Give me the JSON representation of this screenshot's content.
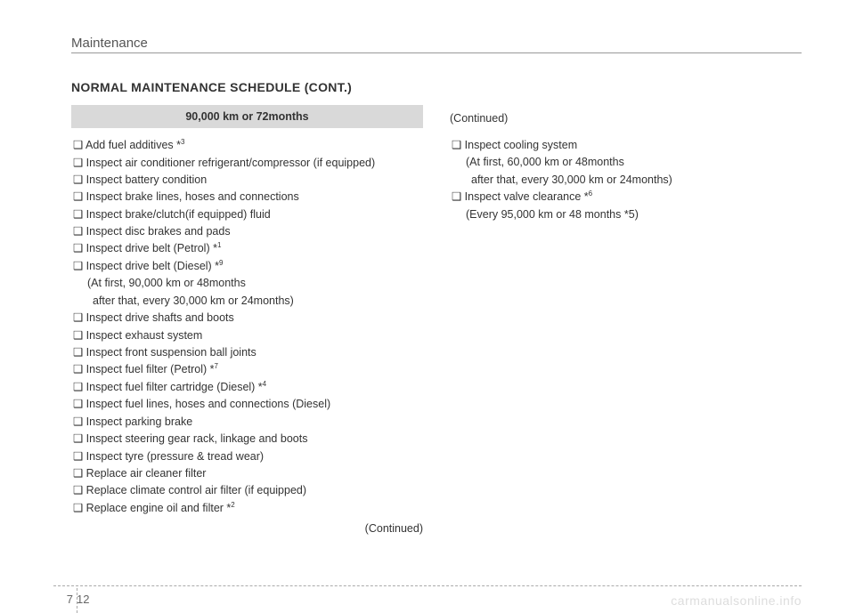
{
  "section": "Maintenance",
  "schedule_title": "NORMAL MAINTENANCE SCHEDULE (CONT.)",
  "interval_header": "90,000 km or 72months",
  "left_items": [
    {
      "text": "❑ Add fuel additives *",
      "sup": "3"
    },
    {
      "text": "❑ Inspect air conditioner refrigerant/compressor (if equipped)"
    },
    {
      "text": "❑ Inspect battery condition"
    },
    {
      "text": "❑ Inspect brake lines, hoses and connections"
    },
    {
      "text": "❑ Inspect brake/clutch(if equipped) fluid"
    },
    {
      "text": "❑ Inspect disc brakes and pads"
    },
    {
      "text": "❑ Inspect drive belt (Petrol) *",
      "sup": "1"
    },
    {
      "text": "❑ Inspect drive belt (Diesel) *",
      "sup": "9"
    },
    {
      "sub": "(At first, 90,000 km or 48months"
    },
    {
      "sub2": "after that, every 30,000 km or 24months)"
    },
    {
      "text": "❑ Inspect drive shafts and boots"
    },
    {
      "text": "❑ Inspect exhaust system"
    },
    {
      "text": "❑ Inspect front suspension ball joints"
    },
    {
      "text": "❑ Inspect fuel filter (Petrol) *",
      "sup": "7"
    },
    {
      "text": "❑ Inspect fuel filter cartridge (Diesel) *",
      "sup": "4"
    },
    {
      "text": "❑ Inspect fuel lines, hoses and connections (Diesel)"
    },
    {
      "text": "❑ Inspect parking brake"
    },
    {
      "text": "❑ Inspect steering gear rack, linkage and boots"
    },
    {
      "text": "❑ Inspect tyre (pressure & tread wear)"
    },
    {
      "text": "❑ Replace air cleaner filter"
    },
    {
      "text": "❑ Replace climate control air filter (if equipped)"
    },
    {
      "text": "❑ Replace engine oil and filter *",
      "sup": "2"
    }
  ],
  "left_continued": "(Continued)",
  "right_continued": "(Continued)",
  "right_items": [
    {
      "text": "❑ Inspect cooling system"
    },
    {
      "sub": "(At first, 60,000 km or 48months"
    },
    {
      "sub2": "after that, every 30,000 km or 24months)"
    },
    {
      "text": "❑ Inspect valve clearance *",
      "sup": "6"
    },
    {
      "sub_html": "(Every 95,000 km or 48 months *",
      "sup": "5",
      "tail": ")"
    }
  ],
  "page_chapter": "7",
  "page_number": "12",
  "watermark": "carmanualsonline.info"
}
